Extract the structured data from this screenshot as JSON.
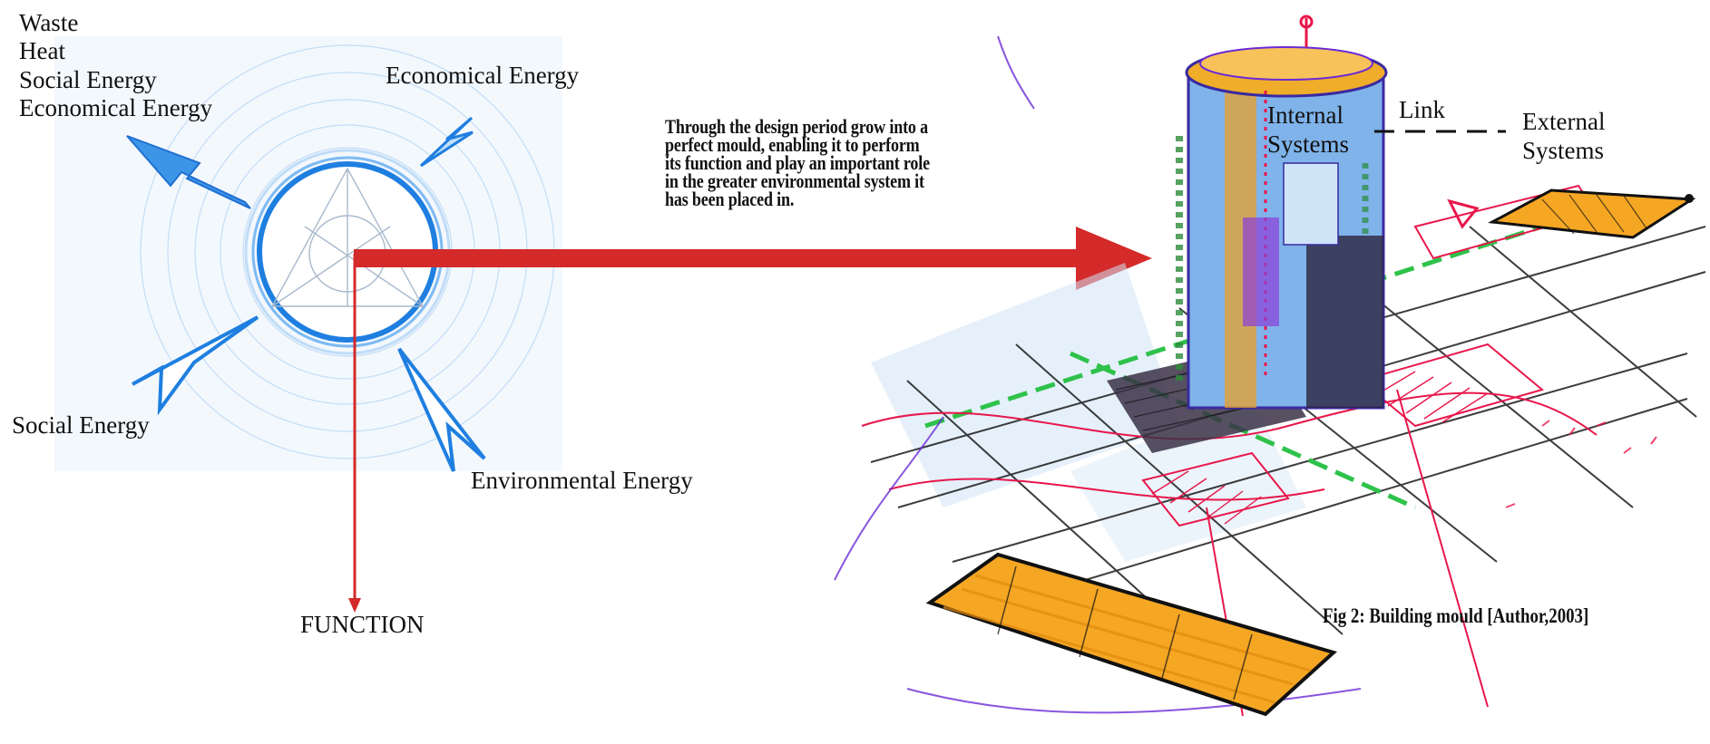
{
  "inputs_label": {
    "lines": [
      "Waste",
      "Heat",
      "Social Energy",
      "Economical Energy"
    ]
  },
  "energy_labels": {
    "economical": "Economical Energy",
    "social": "Social Energy",
    "environmental": "Environmental Energy"
  },
  "function_label": "FUNCTION",
  "description": {
    "lines": [
      "Through the design period grow into a",
      "perfect mould, enabling it to perform",
      "its function and play an important role",
      "in the greater environmental system it",
      "has been placed in."
    ]
  },
  "systems": {
    "internal_lines": [
      "Internal",
      "Systems"
    ],
    "link": "Link",
    "external_lines": [
      "External",
      "Systems"
    ]
  },
  "caption": "Fig 2: Building mould [Author,2003]",
  "colors": {
    "energy_blue": "#1f7fe0",
    "arrow_red": "#d42a2a",
    "pad_orange": "#f5a623",
    "sketch_pink": "#e8174a"
  }
}
